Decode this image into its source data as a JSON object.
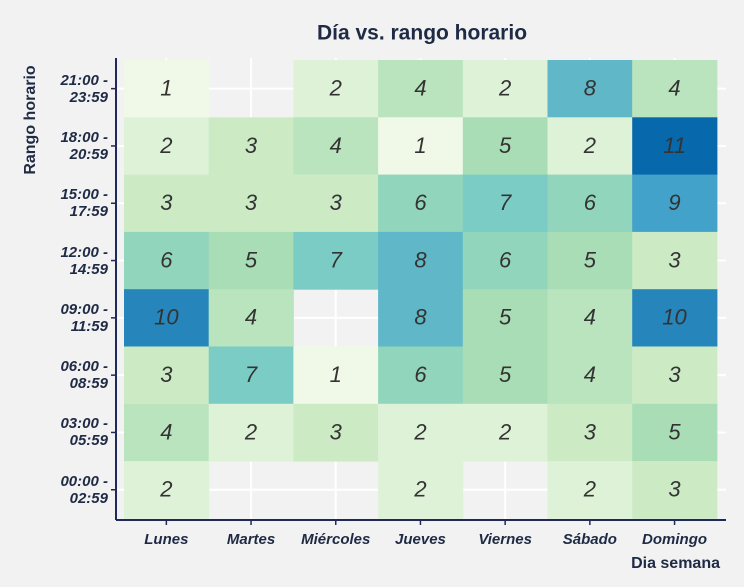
{
  "chart_data": {
    "type": "heatmap",
    "title": "Día vs. rango horario",
    "x_label": "Dia semana",
    "y_label": "Rango horario",
    "x": [
      "Lunes",
      "Martes",
      "Miércoles",
      "Jueves",
      "Viernes",
      "Sábado",
      "Domingo"
    ],
    "y": [
      "21:00 -\n23:59",
      "18:00 -\n20:59",
      "15:00 -\n17:59",
      "12:00 -\n14:59",
      "09:00 -\n11:59",
      "06:00 -\n08:59",
      "03:00 -\n05:59",
      "00:00 -\n02:59"
    ],
    "z": [
      [
        1,
        null,
        2,
        4,
        2,
        8,
        4
      ],
      [
        2,
        3,
        4,
        1,
        5,
        2,
        11
      ],
      [
        3,
        3,
        3,
        6,
        7,
        6,
        9
      ],
      [
        6,
        5,
        7,
        8,
        6,
        5,
        3
      ],
      [
        10,
        4,
        null,
        8,
        5,
        4,
        10
      ],
      [
        3,
        7,
        1,
        6,
        5,
        4,
        3
      ],
      [
        4,
        2,
        3,
        2,
        2,
        3,
        5
      ],
      [
        2,
        null,
        null,
        2,
        null,
        2,
        3
      ]
    ],
    "zlim": [
      1,
      11
    ],
    "colormap": [
      "#f0f9e8",
      "#ccebc5",
      "#a8ddb5",
      "#7bccc4",
      "#43a2ca",
      "#0868ac"
    ],
    "grid": true
  }
}
